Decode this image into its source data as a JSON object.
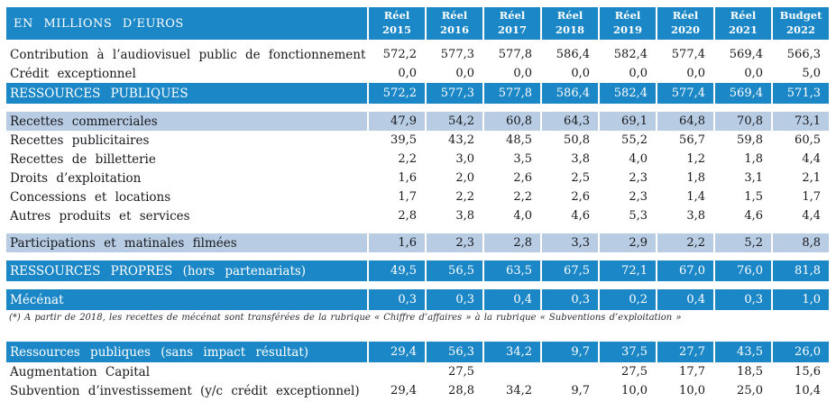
{
  "colors": {
    "header_blue": "#1b87c6",
    "light_blue": "#b8cce4",
    "text_dark": "#17181c",
    "white": "#ffffff"
  },
  "table": {
    "title": "EN MILLIONS D’EUROS",
    "columns": [
      {
        "line1": "Réel",
        "line2": "2015"
      },
      {
        "line1": "Réel",
        "line2": "2016"
      },
      {
        "line1": "Réel",
        "line2": "2017"
      },
      {
        "line1": "Réel",
        "line2": "2018"
      },
      {
        "line1": "Réel",
        "line2": "2019"
      },
      {
        "line1": "Réel",
        "line2": "2020"
      },
      {
        "line1": "Réel",
        "line2": "2021"
      },
      {
        "line1": "Budget",
        "line2": "2022"
      }
    ],
    "rows": [
      {
        "type": "normal",
        "label": "Contribution à l’audiovisuel public de fonctionnement",
        "values": [
          "572,2",
          "577,3",
          "577,8",
          "586,4",
          "582,4",
          "577,4",
          "569,4",
          "566,3"
        ]
      },
      {
        "type": "normal",
        "label": "Crédit exceptionnel",
        "values": [
          "0,0",
          "0,0",
          "0,0",
          "0,0",
          "0,0",
          "0,0",
          "0,0",
          "5,0"
        ]
      },
      {
        "type": "total",
        "label": "RESSOURCES PUBLIQUES",
        "values": [
          "572,2",
          "577,3",
          "577,8",
          "586,4",
          "582,4",
          "577,4",
          "569,4",
          "571,3"
        ]
      },
      {
        "type": "spacer"
      },
      {
        "type": "subtotal",
        "label": "Recettes commerciales",
        "values": [
          "47,9",
          "54,2",
          "60,8",
          "64,3",
          "69,1",
          "64,8",
          "70,8",
          "73,1"
        ]
      },
      {
        "type": "normal",
        "label": "Recettes publicitaires",
        "values": [
          "39,5",
          "43,2",
          "48,5",
          "50,8",
          "55,2",
          "56,7",
          "59,8",
          "60,5"
        ]
      },
      {
        "type": "normal",
        "label": "Recettes de billetterie",
        "values": [
          "2,2",
          "3,0",
          "3,5",
          "3,8",
          "4,0",
          "1,2",
          "1,8",
          "4,4"
        ]
      },
      {
        "type": "normal",
        "label": "Droits d’exploitation",
        "values": [
          "1,6",
          "2,0",
          "2,6",
          "2,5",
          "2,3",
          "1,8",
          "3,1",
          "2,1"
        ]
      },
      {
        "type": "normal",
        "label": "Concessions et locations",
        "values": [
          "1,7",
          "2,2",
          "2,2",
          "2,6",
          "2,3",
          "1,4",
          "1,5",
          "1,7"
        ]
      },
      {
        "type": "normal",
        "label": "Autres produits et services",
        "values": [
          "2,8",
          "3,8",
          "4,0",
          "4,6",
          "5,3",
          "3,8",
          "4,6",
          "4,4"
        ]
      },
      {
        "type": "spacer"
      },
      {
        "type": "subtotal",
        "label": "Participations et matinales filmées",
        "values": [
          "1,6",
          "2,3",
          "2,8",
          "3,3",
          "2,9",
          "2,2",
          "5,2",
          "8,8"
        ]
      },
      {
        "type": "spacer"
      },
      {
        "type": "total",
        "label": "RESSOURCES PROPRES (hors partenariats)",
        "values": [
          "49,5",
          "56,5",
          "63,5",
          "67,5",
          "72,1",
          "67,0",
          "76,0",
          "81,8"
        ]
      },
      {
        "type": "spacer"
      },
      {
        "type": "total",
        "label": "Mécénat",
        "values": [
          "0,3",
          "0,3",
          "0,4",
          "0,3",
          "0,2",
          "0,4",
          "0,3",
          "1,0"
        ]
      },
      {
        "type": "footnote",
        "label": "(*) A partir de 2018, les recettes de mécénat sont transférées de la rubrique « Chiffre d’affaires » à la rubrique « Subventions d’exploitation »"
      },
      {
        "type": "spacer-large"
      },
      {
        "type": "total",
        "label": "Ressources publiques (sans impact résultat)",
        "values": [
          "29,4",
          "56,3",
          "34,2",
          "9,7",
          "37,5",
          "27,7",
          "43,5",
          "26,0"
        ]
      },
      {
        "type": "normal",
        "label": "Augmentation Capital",
        "values": [
          "",
          "27,5",
          "",
          "",
          "27,5",
          "17,7",
          "18,5",
          "15,6"
        ]
      },
      {
        "type": "normal",
        "label": "Subvention d’investissement (y/c crédit exceptionnel)",
        "values": [
          "29,4",
          "28,8",
          "34,2",
          "9,7",
          "10,0",
          "10,0",
          "25,0",
          "10,4"
        ]
      }
    ]
  }
}
